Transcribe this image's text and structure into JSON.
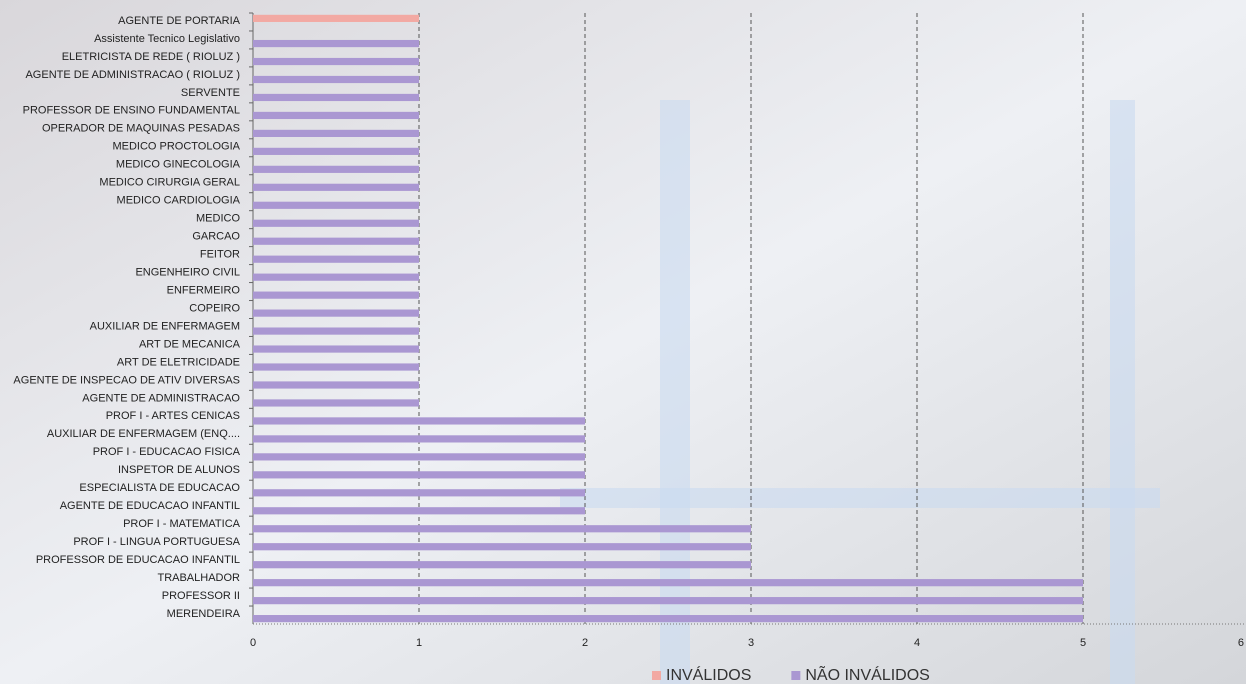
{
  "chart_data": {
    "type": "bar",
    "orientation": "horizontal",
    "categories": [
      "AGENTE DE PORTARIA",
      "Assistente Tecnico Legislativo",
      "ELETRICISTA DE REDE ( RIOLUZ )",
      "AGENTE DE ADMINISTRACAO ( RIOLUZ )",
      "SERVENTE",
      "PROFESSOR DE ENSINO FUNDAMENTAL",
      "OPERADOR DE MAQUINAS PESADAS",
      "MEDICO PROCTOLOGIA",
      "MEDICO GINECOLOGIA",
      "MEDICO CIRURGIA GERAL",
      "MEDICO CARDIOLOGIA",
      "MEDICO",
      "GARCAO",
      "FEITOR",
      "ENGENHEIRO CIVIL",
      "ENFERMEIRO",
      "COPEIRO",
      "AUXILIAR DE ENFERMAGEM",
      "ART DE MECANICA",
      "ART DE ELETRICIDADE",
      "AGENTE DE INSPECAO DE ATIV DIVERSAS",
      "AGENTE DE ADMINISTRACAO",
      "PROF I - ARTES CENICAS",
      "AUXILIAR DE ENFERMAGEM (ENQ....",
      "PROF I - EDUCACAO FISICA",
      "INSPETOR DE ALUNOS",
      "ESPECIALISTA DE EDUCACAO",
      "AGENTE DE EDUCACAO INFANTIL",
      "PROF I - MATEMATICA",
      "PROF I - LINGUA PORTUGUESA",
      "PROFESSOR DE EDUCACAO INFANTIL",
      "TRABALHADOR",
      "PROFESSOR II",
      "MERENDEIRA"
    ],
    "series": [
      {
        "name": "INVÁLIDOS",
        "color": "#f2a9a3",
        "values": [
          1,
          null,
          null,
          null,
          null,
          null,
          null,
          null,
          null,
          null,
          null,
          null,
          null,
          null,
          null,
          null,
          null,
          null,
          null,
          null,
          null,
          null,
          null,
          null,
          null,
          null,
          null,
          null,
          null,
          null,
          null,
          null,
          null,
          null
        ]
      },
      {
        "name": "NÃO INVÁLIDOS",
        "color": "#aa97d2",
        "values": [
          null,
          1,
          1,
          1,
          1,
          1,
          1,
          1,
          1,
          1,
          1,
          1,
          1,
          1,
          1,
          1,
          1,
          1,
          1,
          1,
          1,
          1,
          2,
          2,
          2,
          2,
          2,
          2,
          3,
          3,
          3,
          5,
          5,
          5
        ]
      }
    ],
    "xlim": [
      0,
      6
    ],
    "xticks": [
      0,
      1,
      2,
      3,
      4,
      5,
      6
    ],
    "grid": true,
    "legend": "bottom"
  }
}
